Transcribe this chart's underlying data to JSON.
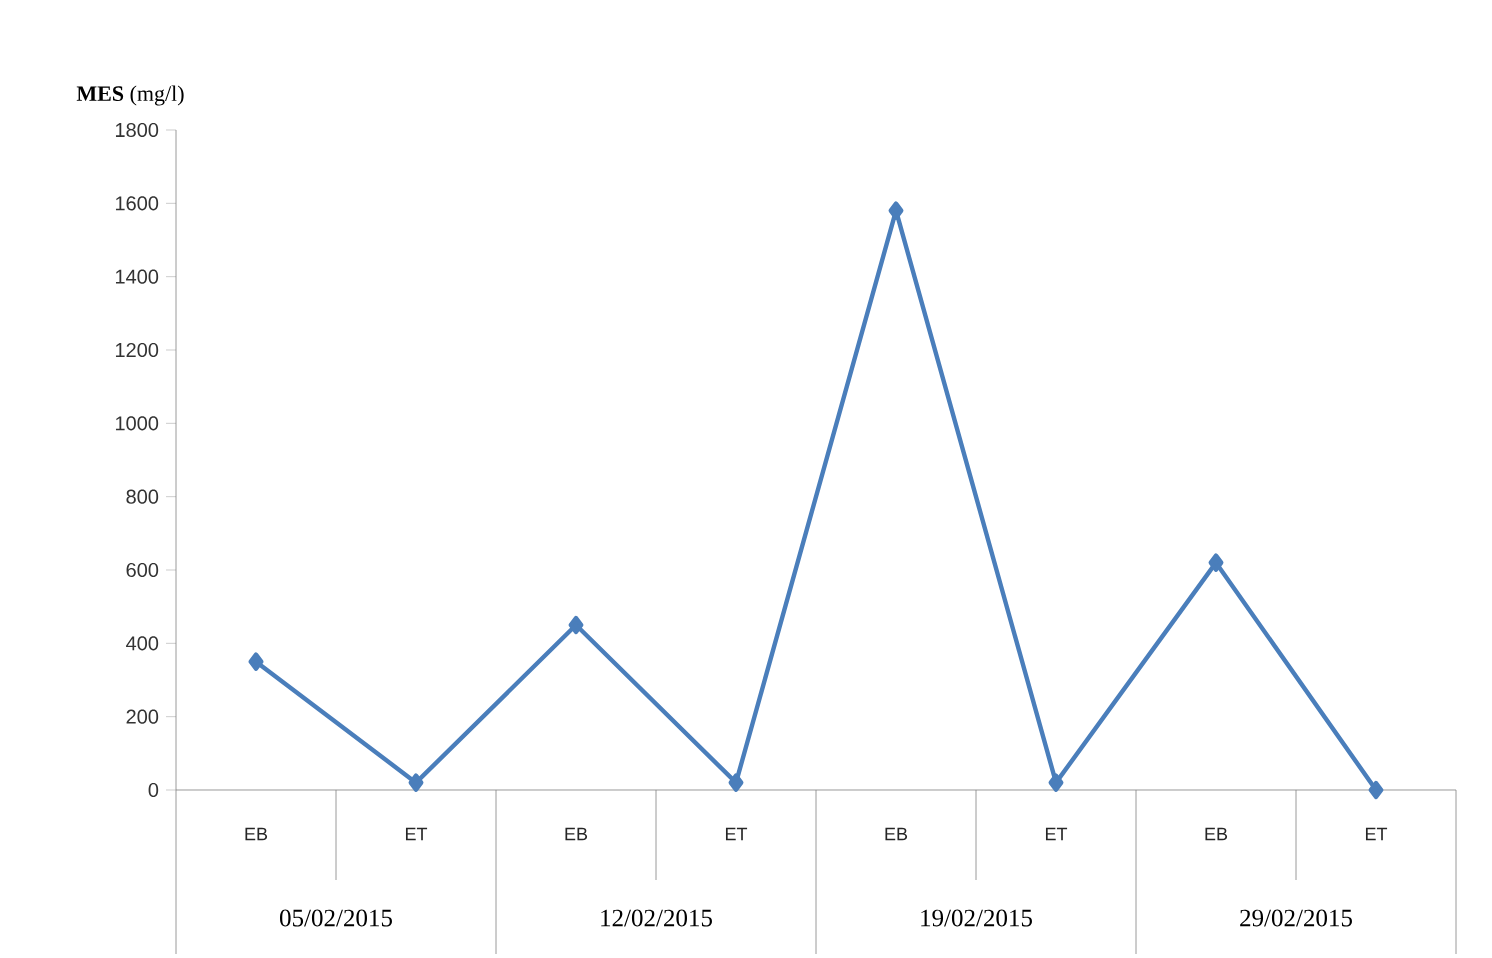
{
  "chart_data": {
    "type": "line",
    "ylabel": "**MES** (mg/l)",
    "categories": [
      "EB",
      "ET",
      "EB",
      "ET",
      "EB",
      "ET",
      "EB",
      "ET"
    ],
    "series": [
      {
        "color": "#4a7ebb",
        "values": [
          350,
          20,
          450,
          20,
          1580,
          20,
          620,
          0
        ]
      }
    ],
    "ylim": [
      0,
      1800
    ],
    "yticks": [
      0,
      200,
      400,
      600,
      800,
      1000,
      1200,
      1400,
      1600,
      1800
    ],
    "marker": "diamond",
    "line_style": "solid",
    "annotations": [
      "05/02/2015",
      "12/02/2015",
      "19/02/2015",
      "29/02/2015"
    ]
  }
}
